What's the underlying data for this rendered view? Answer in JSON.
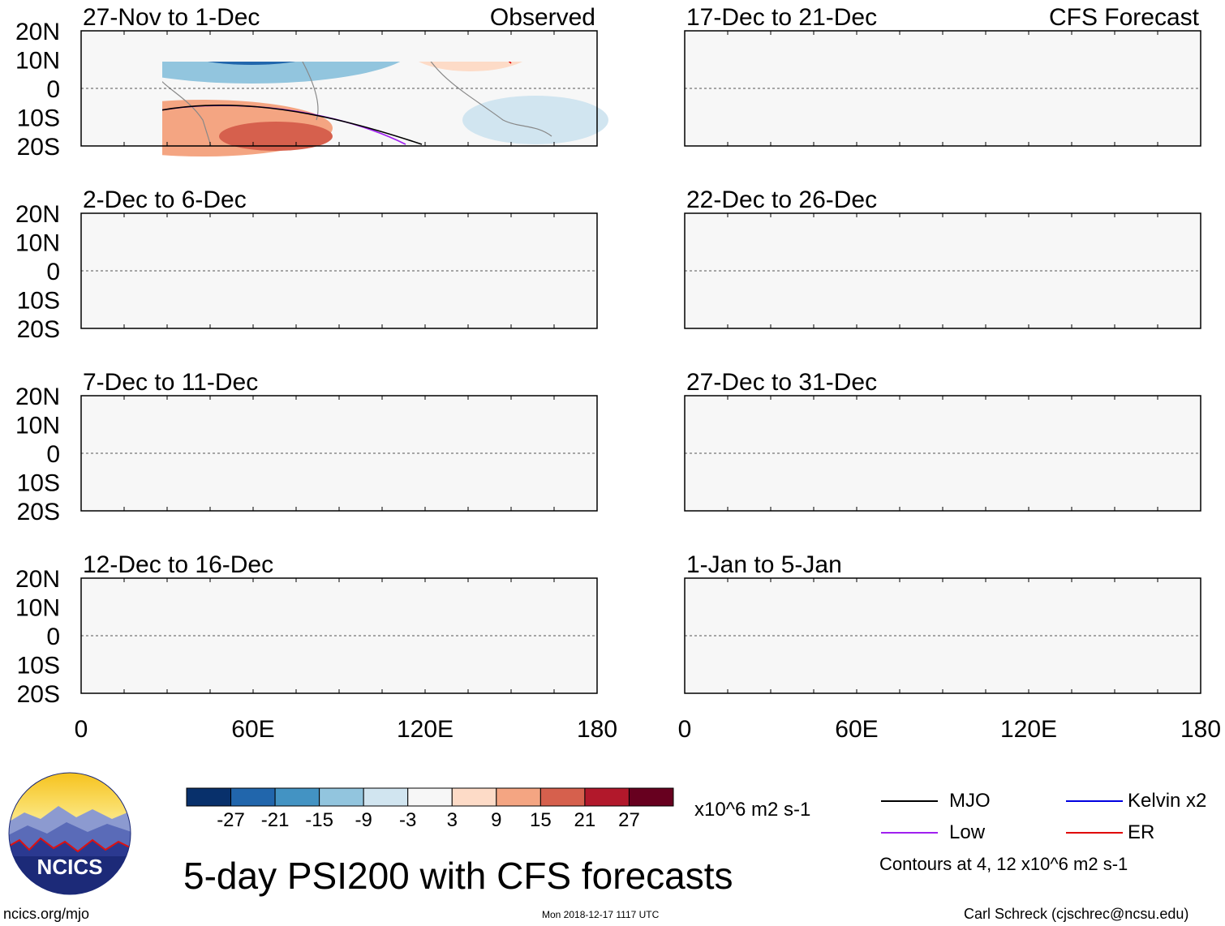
{
  "chart_data": {
    "type": "heatmap",
    "variable": "5-day PSI200",
    "title": "5-day PSI200 with CFS forecasts",
    "units": "x10^6 m2 s-1",
    "x_ticks": [
      "0",
      "60E",
      "120E",
      "180"
    ],
    "y_ticks": [
      "20N",
      "10N",
      "0",
      "10S",
      "20S"
    ],
    "xlim": [
      0,
      180
    ],
    "ylim": [
      -20,
      20
    ],
    "columns": [
      {
        "label": "Observed",
        "panels": [
          "27-Nov to 1-Dec",
          "2-Dec to 6-Dec",
          "7-Dec to 11-Dec",
          "12-Dec to 16-Dec"
        ]
      },
      {
        "label": "CFS Forecast",
        "panels": [
          "17-Dec to 21-Dec",
          "22-Dec to 26-Dec",
          "27-Dec to 31-Dec",
          "1-Jan to 5-Jan"
        ]
      }
    ],
    "colorbar": {
      "labels": [
        "-27",
        "-21",
        "-15",
        "-9",
        "-3",
        "3",
        "9",
        "15",
        "21",
        "27"
      ],
      "colors": [
        "#08306b",
        "#2166ac",
        "#4393c3",
        "#92c5de",
        "#d1e5f0",
        "#f7f7f7",
        "#fddbc7",
        "#f4a582",
        "#d6604d",
        "#b2182b",
        "#67001f"
      ]
    },
    "legend": [
      {
        "name": "MJO",
        "color": "#000000"
      },
      {
        "name": "Kelvin x2",
        "color": "#0000e0"
      },
      {
        "name": "Low",
        "color": "#a020f0"
      },
      {
        "name": "ER",
        "color": "#e00000"
      }
    ],
    "contour_note": "Contours at 4, 12 x10^6 m2 s-1"
  },
  "footer": {
    "logo_text": "NCICS",
    "url": "ncics.org/mjo",
    "timestamp": "Mon 2018-12-17 1117 UTC",
    "credit": "Carl Schreck (cjschrec@ncsu.edu)"
  },
  "colors": {
    "blue_fill": "#92c5de",
    "light_blue": "#d1e5f0",
    "dark_blue": "#2166ac",
    "red_fill": "#f4a582",
    "light_red": "#fddbc7",
    "dark_red": "#d6604d",
    "land": "#888888",
    "bg": "#f7f7f7"
  }
}
